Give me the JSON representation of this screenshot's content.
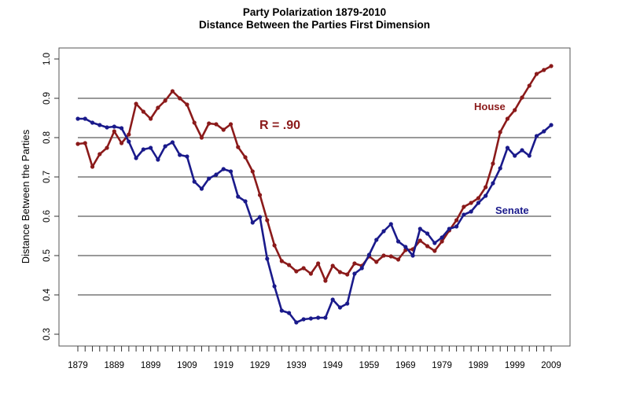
{
  "chart_data": {
    "type": "line",
    "title": "Party Polarization 1879-2010",
    "subtitle": "Distance Between the Parties First Dimension",
    "xlabel": "",
    "ylabel": "Distance Between the Parties",
    "ylim": [
      0.3,
      1.0
    ],
    "yticks": [
      "0.3",
      "0.4",
      "0.5",
      "0.6",
      "0.7",
      "0.8",
      "0.9",
      "1.0"
    ],
    "xtick_labels": [
      "1879",
      "1889",
      "1899",
      "1909",
      "1919",
      "1929",
      "1939",
      "1949",
      "1959",
      "1969",
      "1979",
      "1989",
      "1999",
      "2009"
    ],
    "x_start": 1879,
    "x_step": 2,
    "gridlines": [
      0.4,
      0.5,
      0.6,
      0.7,
      0.8,
      0.9
    ],
    "annotations": [
      {
        "text": "R = .90",
        "color": "#8b1a1a"
      },
      {
        "text": "House",
        "color": "#8b1a1a"
      },
      {
        "text": "Senate",
        "color": "#1a1a8b"
      }
    ],
    "series": [
      {
        "name": "House",
        "color": "#8b1a1a",
        "values": [
          0.784,
          0.786,
          0.726,
          0.758,
          0.774,
          0.816,
          0.786,
          0.808,
          0.886,
          0.866,
          0.848,
          0.876,
          0.894,
          0.918,
          0.9,
          0.884,
          0.838,
          0.8,
          0.836,
          0.834,
          0.82,
          0.834,
          0.776,
          0.75,
          0.714,
          0.654,
          0.59,
          0.526,
          0.486,
          0.476,
          0.46,
          0.468,
          0.454,
          0.48,
          0.436,
          0.474,
          0.458,
          0.452,
          0.48,
          0.474,
          0.498,
          0.484,
          0.5,
          0.498,
          0.49,
          0.514,
          0.516,
          0.538,
          0.524,
          0.512,
          0.536,
          0.564,
          0.59,
          0.624,
          0.634,
          0.646,
          0.674,
          0.734,
          0.814,
          0.848,
          0.87,
          0.902,
          0.932,
          0.962,
          0.972,
          0.982
        ]
      },
      {
        "name": "Senate",
        "color": "#1a1a8b",
        "values": [
          0.848,
          0.848,
          0.838,
          0.832,
          0.826,
          0.828,
          0.824,
          0.79,
          0.748,
          0.77,
          0.774,
          0.744,
          0.778,
          0.788,
          0.756,
          0.752,
          0.688,
          0.67,
          0.696,
          0.706,
          0.72,
          0.714,
          0.65,
          0.638,
          0.584,
          0.598,
          0.492,
          0.422,
          0.36,
          0.354,
          0.33,
          0.338,
          0.34,
          0.342,
          0.342,
          0.388,
          0.368,
          0.378,
          0.454,
          0.468,
          0.502,
          0.54,
          0.562,
          0.58,
          0.536,
          0.522,
          0.5,
          0.568,
          0.556,
          0.532,
          0.546,
          0.568,
          0.574,
          0.604,
          0.612,
          0.634,
          0.652,
          0.684,
          0.722,
          0.774,
          0.754,
          0.768,
          0.754,
          0.804,
          0.816,
          0.832
        ]
      }
    ]
  }
}
